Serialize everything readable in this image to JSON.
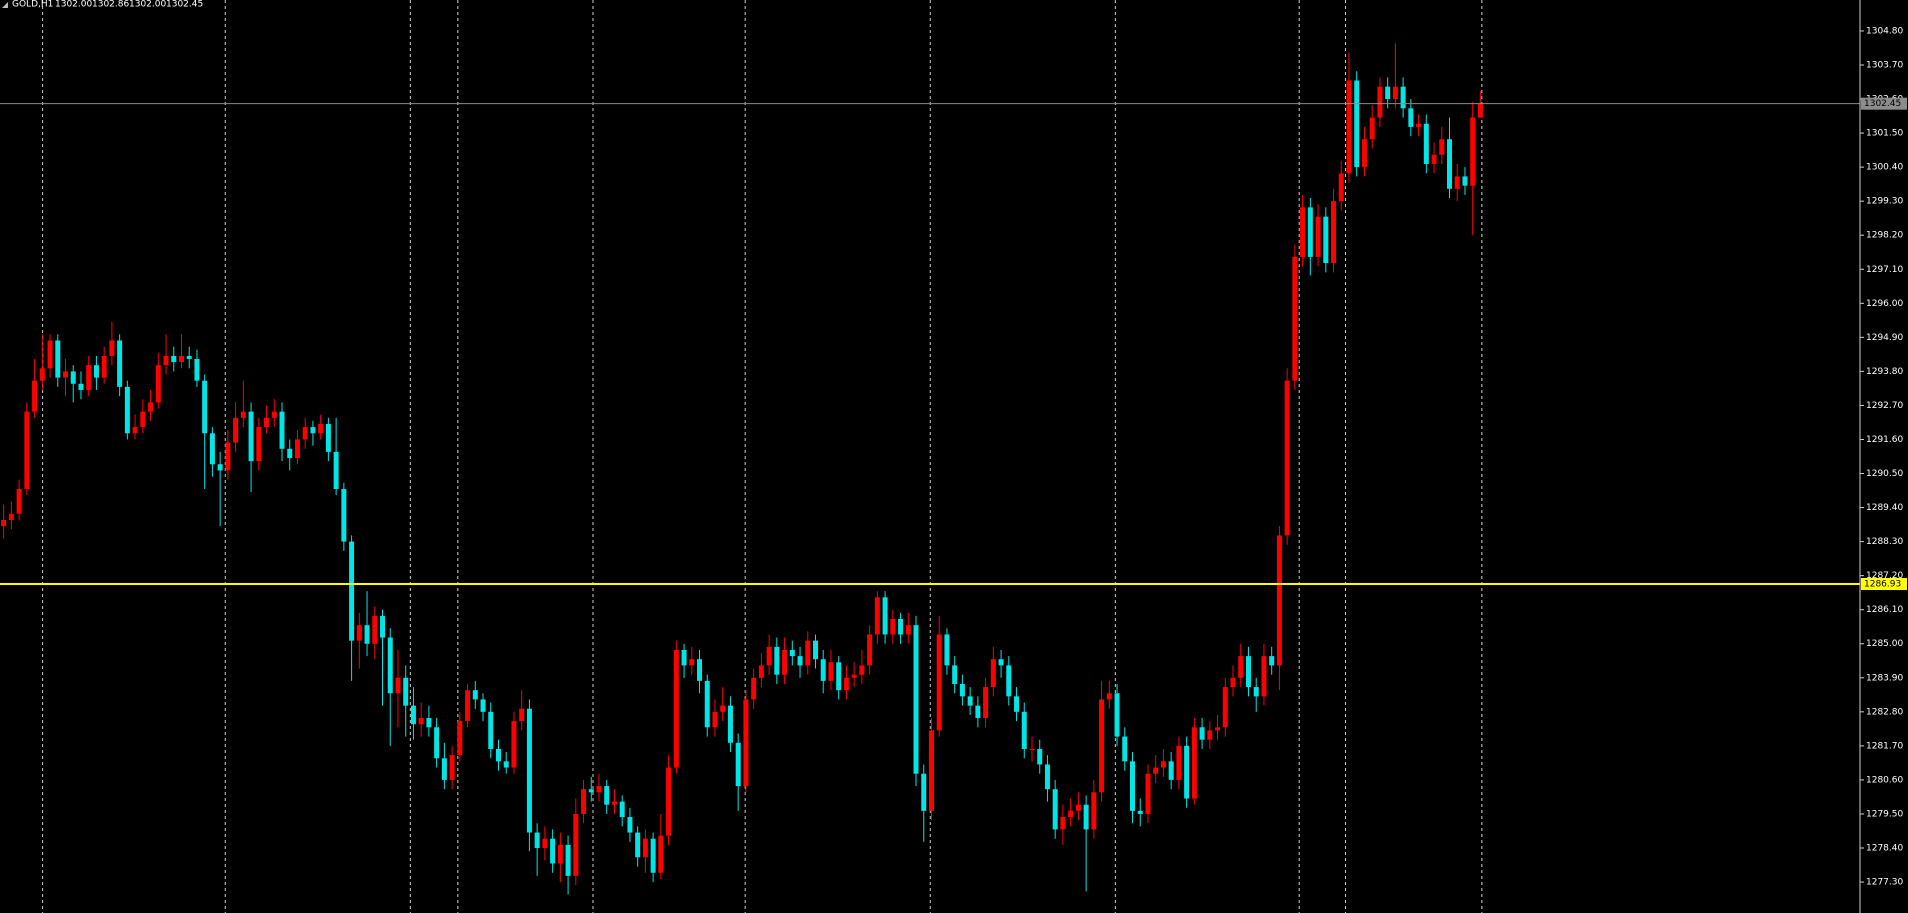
{
  "header": {
    "symbol": "GOLD,H1",
    "ohlc": [
      "1302.00",
      "1302.86",
      "1302.00",
      "1302.45"
    ]
  },
  "chart_data": {
    "type": "candlestick",
    "up_color": "#ff0000",
    "down_color": "#00e5e5",
    "ylim": [
      1276.3,
      1305.8
    ],
    "yticks": [
      {
        "value": 1304.8,
        "label": "1304.80"
      },
      {
        "value": 1303.7,
        "label": "1303.70"
      },
      {
        "value": 1302.6,
        "label": "1302.60"
      },
      {
        "value": 1301.5,
        "label": "1301.50"
      },
      {
        "value": 1300.4,
        "label": "1300.40"
      },
      {
        "value": 1299.3,
        "label": "1299.30"
      },
      {
        "value": 1298.2,
        "label": "1298.20"
      },
      {
        "value": 1297.1,
        "label": "1297.10"
      },
      {
        "value": 1296,
        "label": "1296.00"
      },
      {
        "value": 1294.9,
        "label": "1294.90"
      },
      {
        "value": 1293.8,
        "label": "1293.80"
      },
      {
        "value": 1292.7,
        "label": "1292.70"
      },
      {
        "value": 1291.6,
        "label": "1291.60"
      },
      {
        "value": 1290.5,
        "label": "1290.50"
      },
      {
        "value": 1289.4,
        "label": "1289.40"
      },
      {
        "value": 1288.3,
        "label": "1288.30"
      },
      {
        "value": 1287.2,
        "label": "1287.20"
      },
      {
        "value": 1286.1,
        "label": "1286.10"
      },
      {
        "value": 1285,
        "label": "1285.00"
      },
      {
        "value": 1283.9,
        "label": "1283.90"
      },
      {
        "value": 1282.8,
        "label": "1282.80"
      },
      {
        "value": 1281.7,
        "label": "1281.70"
      },
      {
        "value": 1280.6,
        "label": "1280.60"
      },
      {
        "value": 1279.5,
        "label": "1279.50"
      },
      {
        "value": 1278.4,
        "label": "1278.40"
      },
      {
        "value": 1277.3,
        "label": "1277.30"
      }
    ],
    "price_lines": [
      {
        "value": 1302.45,
        "label": "1302.45",
        "color": "#8c8c8c"
      },
      {
        "value": 1286.93,
        "label": "1286.93",
        "color": "#ffff00"
      }
    ],
    "open": [
      1288.8,
      1289.0,
      1289.2,
      1290.0,
      1292.5,
      1293.5,
      1293.9,
      1294.8,
      1293.6,
      1293.8,
      1293.4,
      1293.2,
      1294.0,
      1293.6,
      1294.3,
      1294.8,
      1293.3,
      1291.8,
      1292.0,
      1292.5,
      1292.8,
      1294.0,
      1294.3,
      1294.1,
      1294.3,
      1294.2,
      1293.5,
      1291.8,
      1290.8,
      1290.6,
      1291.5,
      1292.3,
      1292.5,
      1290.9,
      1292.0,
      1292.3,
      1292.5,
      1291.3,
      1291.0,
      1291.6,
      1292.0,
      1291.8,
      1292.1,
      1291.2,
      1290.0,
      1288.3,
      1285.1,
      1285.6,
      1285.0,
      1285.9,
      1285.2,
      1283.4,
      1283.9,
      1283.0,
      1282.4,
      1282.6,
      1282.3,
      1281.3,
      1280.6,
      1281.4,
      1282.5,
      1283.5,
      1283.2,
      1282.8,
      1281.6,
      1281.2,
      1281.0,
      1282.5,
      1282.9,
      1278.9,
      1278.4,
      1278.7,
      1277.9,
      1278.5,
      1277.5,
      1279.5,
      1280.3,
      1280.2,
      1280.4,
      1279.8,
      1279.9,
      1279.4,
      1278.9,
      1278.1,
      1278.7,
      1277.6,
      1278.8,
      1281.0,
      1284.8,
      1284.3,
      1284.5,
      1283.8,
      1282.3,
      1282.8,
      1283.0,
      1281.8,
      1280.4,
      1283.2,
      1283.9,
      1284.3,
      1284.9,
      1284.0,
      1284.8,
      1284.6,
      1284.3,
      1285.1,
      1284.5,
      1283.8,
      1284.4,
      1283.5,
      1283.9,
      1284.0,
      1284.3,
      1285.3,
      1286.5,
      1285.3,
      1285.8,
      1285.3,
      1285.6,
      1280.8,
      1279.6,
      1282.2,
      1285.3,
      1284.3,
      1283.7,
      1283.3,
      1283.0,
      1282.6,
      1283.6,
      1284.5,
      1284.3,
      1283.3,
      1282.8,
      1281.6,
      1281.6,
      1281.1,
      1280.3,
      1279.0,
      1279.4,
      1279.6,
      1279.8,
      1279.0,
      1280.2,
      1283.2,
      1283.4,
      1282.0,
      1281.2,
      1279.6,
      1279.5,
      1280.8,
      1281.0,
      1281.2,
      1280.6,
      1281.7,
      1280.0,
      1282.3,
      1281.9,
      1282.2,
      1282.3,
      1283.6,
      1283.9,
      1284.6,
      1283.6,
      1283.3,
      1284.6,
      1284.3,
      1288.5,
      1293.5,
      1297.5,
      1299.1,
      1297.5,
      1298.8,
      1297.3,
      1299.3,
      1300.2,
      1303.2,
      1300.4,
      1301.3,
      1302.0,
      1303.0,
      1302.6,
      1303.0,
      1302.3,
      1301.7,
      1301.8,
      1300.5,
      1300.8,
      1301.3,
      1299.7,
      1300.1,
      1299.8,
      1302.0
    ],
    "high": [
      1289.5,
      1289.6,
      1290.3,
      1292.8,
      1294.2,
      1295.0,
      1295.0,
      1295.0,
      1294.2,
      1294.0,
      1293.8,
      1294.3,
      1294.3,
      1294.6,
      1295.4,
      1295.0,
      1293.5,
      1292.4,
      1292.9,
      1293.2,
      1294.4,
      1295.0,
      1294.6,
      1295.0,
      1294.6,
      1294.5,
      1293.7,
      1292.0,
      1291.2,
      1291.9,
      1292.8,
      1293.5,
      1292.8,
      1292.3,
      1292.7,
      1292.9,
      1292.8,
      1291.6,
      1291.9,
      1292.3,
      1292.2,
      1292.4,
      1292.3,
      1292.3,
      1290.2,
      1288.5,
      1286.0,
      1286.7,
      1286.2,
      1286.1,
      1285.5,
      1284.8,
      1284.3,
      1283.6,
      1283.1,
      1283.0,
      1282.6,
      1281.8,
      1281.7,
      1282.8,
      1283.7,
      1283.8,
      1283.4,
      1283.1,
      1281.9,
      1281.5,
      1282.8,
      1283.5,
      1283.2,
      1279.2,
      1279.1,
      1279.0,
      1278.9,
      1278.8,
      1280.0,
      1280.6,
      1280.7,
      1280.8,
      1280.6,
      1280.3,
      1280.1,
      1279.7,
      1279.1,
      1279.0,
      1278.9,
      1279.5,
      1281.4,
      1285.1,
      1285.0,
      1284.9,
      1284.8,
      1284.0,
      1283.2,
      1283.6,
      1283.3,
      1282.1,
      1283.5,
      1284.2,
      1284.7,
      1285.3,
      1285.2,
      1285.2,
      1285.1,
      1284.9,
      1285.4,
      1285.3,
      1284.8,
      1284.8,
      1284.6,
      1284.3,
      1284.4,
      1284.8,
      1285.6,
      1286.7,
      1286.7,
      1286.1,
      1286.0,
      1286.0,
      1285.9,
      1281.1,
      1282.6,
      1285.9,
      1285.5,
      1284.6,
      1284.0,
      1283.6,
      1283.3,
      1283.9,
      1284.9,
      1284.8,
      1284.6,
      1283.6,
      1283.1,
      1282.0,
      1281.9,
      1281.4,
      1280.6,
      1279.8,
      1280.0,
      1280.2,
      1280.1,
      1280.6,
      1283.8,
      1283.8,
      1283.7,
      1282.3,
      1281.5,
      1280.0,
      1281.1,
      1281.4,
      1281.6,
      1281.5,
      1282.0,
      1282.0,
      1282.6,
      1282.6,
      1282.5,
      1282.7,
      1283.9,
      1284.3,
      1285.0,
      1284.9,
      1283.9,
      1285.0,
      1284.9,
      1288.8,
      1293.9,
      1297.9,
      1299.5,
      1299.4,
      1299.2,
      1299.1,
      1299.7,
      1300.6,
      1304.1,
      1303.5,
      1301.7,
      1302.4,
      1303.3,
      1303.3,
      1304.4,
      1303.3,
      1302.6,
      1302.1,
      1302.1,
      1301.2,
      1301.7,
      1302.0,
      1300.5,
      1300.4,
      1302.5,
      1302.86
    ],
    "low": [
      1288.4,
      1288.7,
      1289.0,
      1289.8,
      1292.3,
      1293.2,
      1293.6,
      1293.3,
      1293.0,
      1292.8,
      1292.9,
      1293.0,
      1293.2,
      1293.4,
      1294.0,
      1293.0,
      1291.6,
      1291.6,
      1291.8,
      1292.2,
      1292.6,
      1293.7,
      1293.8,
      1293.9,
      1293.9,
      1293.3,
      1290.0,
      1290.4,
      1288.8,
      1290.3,
      1291.2,
      1292.0,
      1289.9,
      1290.6,
      1291.8,
      1292.0,
      1290.9,
      1290.6,
      1290.8,
      1291.3,
      1291.4,
      1291.6,
      1290.9,
      1289.8,
      1288.0,
      1283.8,
      1284.2,
      1284.6,
      1284.5,
      1283.0,
      1281.7,
      1282.3,
      1282.0,
      1281.9,
      1282.0,
      1282.0,
      1281.0,
      1280.3,
      1280.3,
      1281.2,
      1282.3,
      1282.9,
      1282.5,
      1281.3,
      1280.9,
      1280.8,
      1280.8,
      1282.2,
      1278.3,
      1277.5,
      1278.0,
      1277.6,
      1277.3,
      1276.9,
      1277.2,
      1279.2,
      1279.9,
      1279.9,
      1279.5,
      1279.5,
      1279.1,
      1278.6,
      1277.8,
      1277.6,
      1277.3,
      1277.4,
      1278.5,
      1280.8,
      1283.9,
      1284.0,
      1283.4,
      1282.0,
      1282.0,
      1282.5,
      1281.5,
      1279.6,
      1280.2,
      1282.9,
      1283.6,
      1284.0,
      1283.7,
      1283.7,
      1284.3,
      1283.9,
      1284.0,
      1284.2,
      1283.4,
      1283.5,
      1283.2,
      1283.2,
      1283.6,
      1283.7,
      1284.0,
      1285.0,
      1285.0,
      1285.0,
      1285.0,
      1285.0,
      1280.4,
      1278.6,
      1279.3,
      1282.0,
      1284.0,
      1283.4,
      1283.0,
      1282.7,
      1282.3,
      1282.3,
      1283.3,
      1283.9,
      1283.0,
      1282.5,
      1281.3,
      1281.2,
      1280.8,
      1279.9,
      1278.7,
      1278.5,
      1279.1,
      1279.3,
      1277.0,
      1278.7,
      1279.9,
      1282.9,
      1281.7,
      1280.9,
      1279.2,
      1279.1,
      1279.2,
      1280.5,
      1280.7,
      1280.3,
      1280.3,
      1279.7,
      1279.8,
      1281.6,
      1281.6,
      1281.9,
      1282.0,
      1283.3,
      1283.6,
      1283.3,
      1282.8,
      1283.0,
      1284.0,
      1283.5,
      1288.2,
      1293.2,
      1297.2,
      1296.9,
      1297.2,
      1297.0,
      1297.0,
      1299.0,
      1299.9,
      1300.1,
      1300.1,
      1301.0,
      1301.7,
      1302.3,
      1302.3,
      1302.0,
      1301.4,
      1301.4,
      1300.2,
      1300.2,
      1300.5,
      1299.4,
      1299.3,
      1299.5,
      1298.2,
      1302.0
    ],
    "close": [
      1289.0,
      1289.2,
      1290.0,
      1292.5,
      1293.5,
      1293.9,
      1294.8,
      1293.6,
      1293.8,
      1293.4,
      1293.2,
      1294.0,
      1293.6,
      1294.3,
      1294.8,
      1293.3,
      1291.8,
      1292.0,
      1292.5,
      1292.8,
      1294.0,
      1294.3,
      1294.1,
      1294.3,
      1294.2,
      1293.5,
      1291.8,
      1290.8,
      1290.6,
      1291.5,
      1292.3,
      1292.5,
      1290.9,
      1292.0,
      1292.3,
      1292.5,
      1291.3,
      1291.0,
      1291.6,
      1292.0,
      1291.8,
      1292.1,
      1291.2,
      1290.0,
      1288.3,
      1285.1,
      1285.6,
      1285.0,
      1285.9,
      1285.2,
      1283.4,
      1283.9,
      1283.0,
      1282.4,
      1282.6,
      1282.3,
      1281.3,
      1280.6,
      1281.4,
      1282.5,
      1283.5,
      1283.2,
      1282.8,
      1281.6,
      1281.2,
      1281.0,
      1282.5,
      1282.9,
      1278.9,
      1278.4,
      1278.7,
      1277.9,
      1278.5,
      1277.5,
      1279.5,
      1280.3,
      1280.2,
      1280.4,
      1279.8,
      1279.9,
      1279.4,
      1278.9,
      1278.1,
      1278.7,
      1277.6,
      1278.8,
      1281.0,
      1284.8,
      1284.3,
      1284.5,
      1283.8,
      1282.3,
      1282.8,
      1283.0,
      1281.8,
      1280.4,
      1283.2,
      1283.9,
      1284.3,
      1284.9,
      1284.0,
      1284.8,
      1284.6,
      1284.3,
      1285.1,
      1284.5,
      1283.8,
      1284.4,
      1283.5,
      1283.9,
      1284.0,
      1284.3,
      1285.3,
      1286.5,
      1285.3,
      1285.8,
      1285.3,
      1285.6,
      1280.8,
      1279.6,
      1282.2,
      1285.3,
      1284.3,
      1283.7,
      1283.3,
      1283.0,
      1282.6,
      1283.6,
      1284.5,
      1284.3,
      1283.3,
      1282.8,
      1281.6,
      1281.6,
      1281.1,
      1280.3,
      1279.0,
      1279.4,
      1279.6,
      1279.8,
      1279.0,
      1280.2,
      1283.2,
      1283.4,
      1282.0,
      1281.2,
      1279.6,
      1279.5,
      1280.8,
      1281.0,
      1281.2,
      1280.6,
      1281.7,
      1280.0,
      1282.3,
      1281.9,
      1282.2,
      1282.3,
      1283.6,
      1283.9,
      1284.6,
      1283.6,
      1283.3,
      1284.6,
      1284.3,
      1288.5,
      1293.5,
      1297.5,
      1299.1,
      1297.5,
      1298.8,
      1297.3,
      1299.3,
      1300.2,
      1303.2,
      1300.4,
      1301.3,
      1302.0,
      1303.0,
      1302.6,
      1303.0,
      1302.3,
      1301.7,
      1301.8,
      1300.5,
      1300.8,
      1301.3,
      1299.7,
      1300.1,
      1299.8,
      1302.0,
      1302.45
    ]
  }
}
